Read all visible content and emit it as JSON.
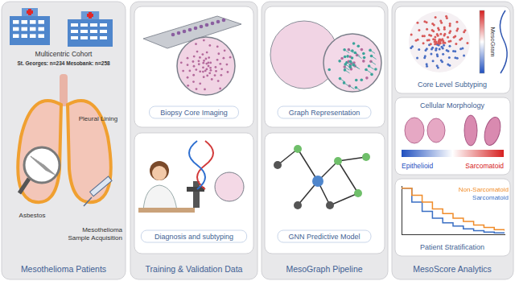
{
  "columns": [
    {
      "caption": "Mesothelioma Patients",
      "cohort_title": "Multicentric Cohort",
      "cohort_sites": "St. Georges: n=234 Mesobank: n=258",
      "pleura_label": "Pleural Lining",
      "asbestos_label": "Asbestos",
      "acquisition_label": [
        "Mesothelioma",
        "Sample Acquisition"
      ]
    },
    {
      "caption": "Training & Validation Data",
      "boxes": [
        "Biopsy Core Imaging",
        "Diagnosis and subtyping"
      ]
    },
    {
      "caption": "MesoGraph Pipeline",
      "boxes": [
        "Graph Representation",
        "GNN Predictive Model"
      ]
    },
    {
      "caption": "MesoScore Analytics",
      "boxes": [
        "Core Level Subtyping",
        "Cellular Morphology"
      ],
      "colorbar_label": "MesoGram",
      "morphology_scale": [
        {
          "label": "Epithelioid",
          "color": "#1f4fbf"
        },
        {
          "label": "Sarcomatoid",
          "color": "#d62020"
        }
      ]
    }
  ],
  "chart_data": {
    "type": "line",
    "title": "Patient Stratification",
    "x": [
      0,
      1,
      2,
      3,
      4,
      5,
      6,
      7,
      8,
      9,
      10
    ],
    "series": [
      {
        "name": "Non-Sarcomatoid",
        "color": "#f08c2a",
        "values": [
          1.0,
          0.85,
          0.7,
          0.55,
          0.45,
          0.35,
          0.28,
          0.2,
          0.15,
          0.1,
          0.08
        ]
      },
      {
        "name": "Sarcomatoid",
        "color": "#3a6fc4",
        "values": [
          1.0,
          0.7,
          0.5,
          0.35,
          0.25,
          0.18,
          0.12,
          0.08,
          0.05,
          0.03,
          0.02
        ]
      }
    ],
    "xlim": [
      0,
      10
    ],
    "ylim": [
      0,
      1.05
    ],
    "line_style": "step",
    "tick_labels": false,
    "grid": false,
    "legend": "top-right"
  }
}
